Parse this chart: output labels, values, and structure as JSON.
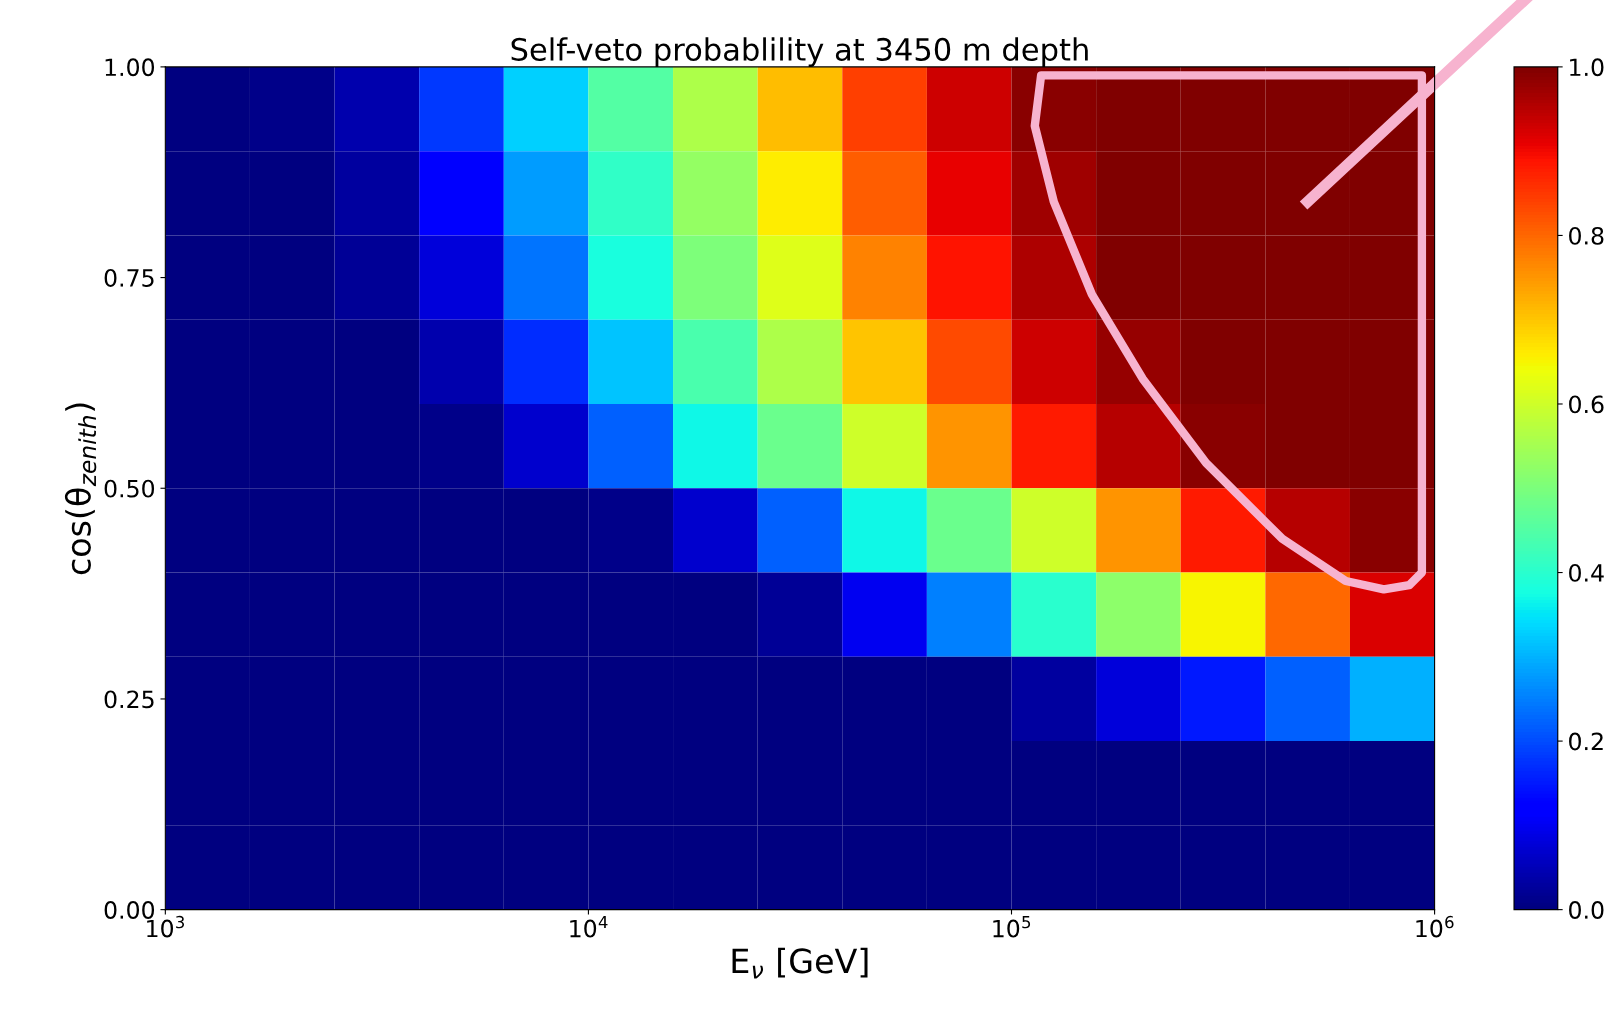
{
  "chart_data": {
    "type": "heatmap",
    "title": "Self-veto probablility at 3450 m depth",
    "xlabel": "E$_{ν}$ [GeV]",
    "ylabel": "cos(θ$_{zenith}$)",
    "log": "x",
    "x": [
      1259,
      1995,
      3162,
      5012,
      7943,
      12589,
      19953,
      31623,
      50119,
      79433,
      125893,
      199526,
      316228,
      501187,
      794328
    ],
    "y": [
      0.95,
      0.85,
      0.75,
      0.65,
      0.55,
      0.45,
      0.35,
      0.25,
      0.15,
      0.05
    ],
    "xlim": [
      1000,
      1000000
    ],
    "xticks": [
      {
        "value": 1000,
        "label": "10$^{3}$"
      },
      {
        "value": 10000,
        "label": "10$^{4}$"
      },
      {
        "value": 100000,
        "label": "10$^{5}$"
      },
      {
        "value": 1000000,
        "label": "10$^{6}$"
      }
    ],
    "ylim": [
      0,
      1
    ],
    "yticks": [
      {
        "value": 0,
        "label": "0.00"
      },
      {
        "value": 0.25,
        "label": "0.25"
      },
      {
        "value": 0.5,
        "label": "0.50"
      },
      {
        "value": 0.75,
        "label": "0.75"
      },
      {
        "value": 1,
        "label": "1.00"
      }
    ],
    "clim": [
      0,
      1
    ],
    "cticks": [
      {
        "value": 0,
        "label": "0.0"
      },
      {
        "value": 0.2,
        "label": "0.2"
      },
      {
        "value": 0.4,
        "label": "0.4"
      },
      {
        "value": 0.6,
        "label": "0.6"
      },
      {
        "value": 0.8,
        "label": "0.8"
      },
      {
        "value": 1,
        "label": "1.0"
      }
    ],
    "cells": [
      [
        0,
        0.01,
        0.04,
        0.18,
        0.33,
        0.45,
        0.56,
        0.71,
        0.84,
        0.93,
        0.99,
        1,
        1,
        1,
        1
      ],
      [
        0,
        0,
        0.03,
        0.12,
        0.28,
        0.41,
        0.53,
        0.66,
        0.81,
        0.91,
        0.97,
        1,
        1,
        1,
        1
      ],
      [
        0,
        0,
        0.02,
        0.08,
        0.24,
        0.38,
        0.5,
        0.62,
        0.77,
        0.89,
        0.96,
        1,
        1,
        1,
        1
      ],
      [
        0,
        0,
        0,
        0.04,
        0.17,
        0.32,
        0.44,
        0.56,
        0.7,
        0.83,
        0.93,
        0.98,
        1,
        1,
        1
      ],
      [
        0,
        0,
        0,
        0.01,
        0.07,
        0.22,
        0.37,
        0.48,
        0.6,
        0.75,
        0.88,
        0.95,
        0.99,
        1,
        1
      ],
      [
        0,
        0,
        0,
        0,
        0,
        0.01,
        0.07,
        0.22,
        0.37,
        0.48,
        0.6,
        0.75,
        0.88,
        0.95,
        0.99
      ],
      [
        0,
        0,
        0,
        0,
        0,
        0,
        0,
        0.02,
        0.1,
        0.25,
        0.4,
        0.52,
        0.65,
        0.8,
        0.92
      ],
      [
        0,
        0,
        0,
        0,
        0,
        0,
        0,
        0,
        0,
        0,
        0.03,
        0.08,
        0.15,
        0.22,
        0.3
      ],
      [
        0,
        0,
        0,
        0,
        0,
        0,
        0,
        0,
        0,
        0,
        0,
        0,
        0,
        0,
        0
      ],
      [
        0,
        0,
        0,
        0,
        0,
        0,
        0,
        0,
        0,
        0,
        0,
        0,
        0,
        0,
        0
      ]
    ]
  }
}
